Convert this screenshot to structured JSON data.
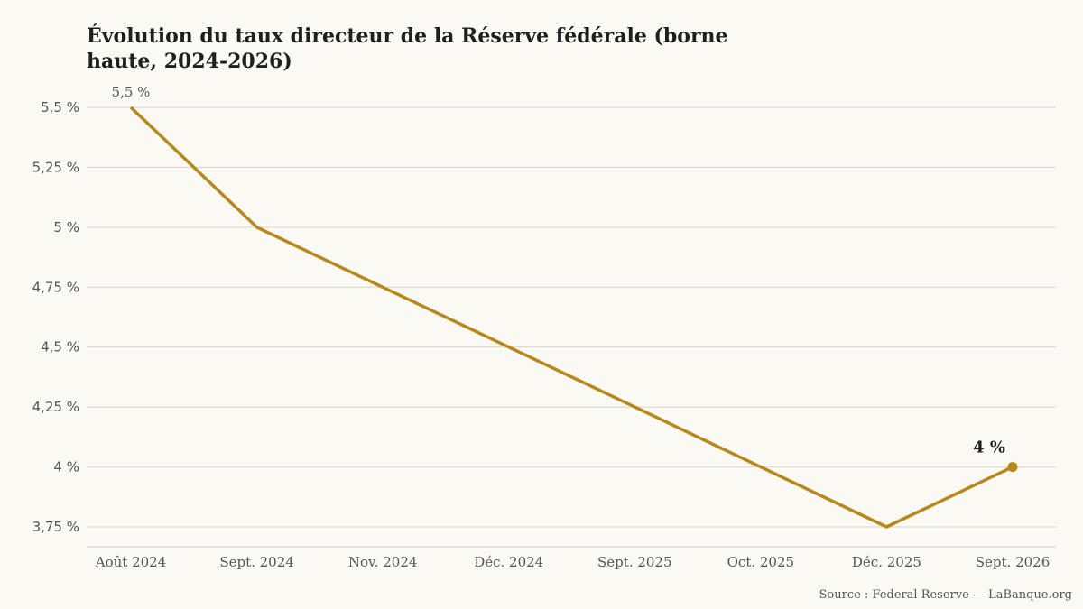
{
  "chart_data": {
    "type": "line",
    "title": "Évolution du taux directeur de la Réserve fédérale (borne haute, 2024-2026)",
    "categories": [
      "Août 2024",
      "Sept. 2024",
      "Nov. 2024",
      "Déc. 2024",
      "Sept. 2025",
      "Oct. 2025",
      "Déc. 2025",
      "Sept. 2026"
    ],
    "series": [
      {
        "values": [
          5.5,
          5.0,
          4.75,
          4.5,
          4.25,
          4.0,
          3.75,
          4.0
        ]
      }
    ],
    "ylim": [
      3.75,
      5.5
    ],
    "yticks": [
      {
        "value": 5.5,
        "label": "5,5 %"
      },
      {
        "value": 5.25,
        "label": "5,25 %"
      },
      {
        "value": 5.0,
        "label": "5 %"
      },
      {
        "value": 4.75,
        "label": "4,75 %"
      },
      {
        "value": 4.5,
        "label": "4,5 %"
      },
      {
        "value": 4.25,
        "label": "4,25 %"
      },
      {
        "value": 4.0,
        "label": "4 %"
      },
      {
        "value": 3.75,
        "label": "3,75 %"
      }
    ],
    "grid": true,
    "annotations": {
      "first": "5,5 %",
      "last": "4 %"
    },
    "line_color": "#b8891a"
  },
  "source": "Source : Federal Reserve — LaBanque.org"
}
